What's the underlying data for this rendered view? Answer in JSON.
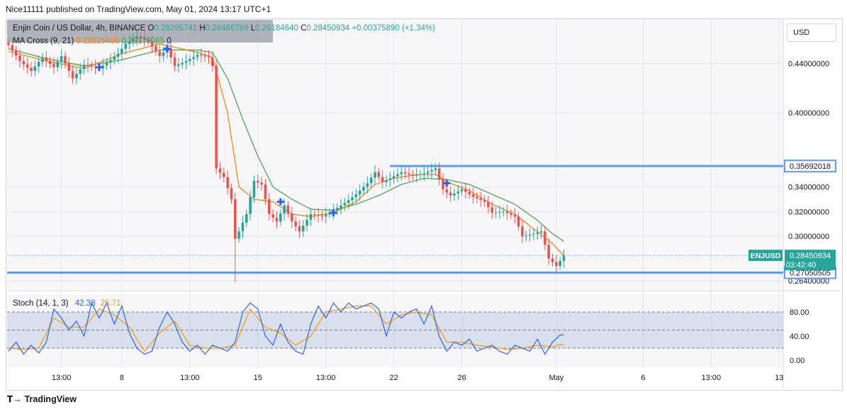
{
  "header": {
    "published_line": "Nice11111 published on TradingView.com, May 01, 2024 13:17 UTC+1"
  },
  "legend": {
    "symbol": "Enjin Coin / US Dollar, 4h, BINANCE",
    "o_label": "O",
    "o_value": "0.28295741",
    "h_label": "H",
    "h_value": "0.28486789",
    "l_label": "L",
    "l_value": "0.28184640",
    "c_label": "C",
    "c_value": "0.28450934",
    "change": "+0.00375890 (+1.34%)",
    "ma_label": "MA Cross (9, 21)",
    "ma_fast": "0.28525486",
    "ma_slow": "0.29170065",
    "ma_extra": "0"
  },
  "stoch_legend": {
    "label": "Stoch (14, 1, 3)",
    "k": "42.38",
    "d": "25.71"
  },
  "currency_button": "USD",
  "branding": "TradingView",
  "colors": {
    "up": "#26a69a",
    "down": "#ef5350",
    "ma_fast": "#f57c00",
    "ma_slow": "#43a047",
    "hline": "#5b9cf6",
    "cross": "#2962ff",
    "stoch_k": "#2962ff",
    "stoch_d": "#ff9800",
    "stoch_band": "#b2c4dd"
  },
  "chart_data": {
    "type": "candlestick",
    "symbol": "ENJUSD",
    "interval": "4h",
    "price_ticks": [
      "0.44000000",
      "0.40000000",
      "0.34000000",
      "0.32000000",
      "0.30000000",
      "0.26400000"
    ],
    "price_tick_values": [
      0.44,
      0.4,
      0.34,
      0.32,
      0.3,
      0.264
    ],
    "y_range": [
      0.257,
      0.476
    ],
    "x_tick_labels": [
      "13:00",
      "8",
      "13:00",
      "15",
      "13:00",
      "22",
      "26",
      "May",
      "6",
      "13:00",
      "13"
    ],
    "x_tick_index": [
      14,
      30,
      48,
      66,
      84,
      102,
      120,
      145,
      168,
      186,
      204
    ],
    "resistance": {
      "value": 0.35692018,
      "label": "0.35692018",
      "start_index": 101
    },
    "support": {
      "value": 0.27050505,
      "label": "0.27050505"
    },
    "last_price": {
      "symbol_label": "ENJUSD",
      "value": 0.28450934,
      "label": "0.28450934",
      "countdown": "03:42:40"
    },
    "crosses": [
      {
        "i": 24,
        "price": 0.437
      },
      {
        "i": 42,
        "price": 0.452
      },
      {
        "i": 72,
        "price": 0.328
      },
      {
        "i": 86,
        "price": 0.319
      },
      {
        "i": 116,
        "price": 0.343
      }
    ],
    "anchors": [
      [
        0,
        0.455
      ],
      [
        3,
        0.442
      ],
      [
        6,
        0.434
      ],
      [
        9,
        0.445
      ],
      [
        12,
        0.437
      ],
      [
        14,
        0.446
      ],
      [
        17,
        0.428
      ],
      [
        20,
        0.439
      ],
      [
        24,
        0.436
      ],
      [
        27,
        0.443
      ],
      [
        29,
        0.448
      ],
      [
        31,
        0.456
      ],
      [
        34,
        0.462
      ],
      [
        37,
        0.458
      ],
      [
        40,
        0.446
      ],
      [
        42,
        0.452
      ],
      [
        44,
        0.438
      ],
      [
        47,
        0.442
      ],
      [
        50,
        0.447
      ],
      [
        53,
        0.445
      ],
      [
        54,
        0.438
      ],
      [
        55,
        0.355
      ],
      [
        57,
        0.348
      ],
      [
        59,
        0.33
      ],
      [
        60,
        0.298
      ],
      [
        61,
        0.304
      ],
      [
        63,
        0.318
      ],
      [
        65,
        0.345
      ],
      [
        67,
        0.342
      ],
      [
        69,
        0.318
      ],
      [
        71,
        0.312
      ],
      [
        73,
        0.325
      ],
      [
        75,
        0.312
      ],
      [
        77,
        0.304
      ],
      [
        80,
        0.318
      ],
      [
        83,
        0.316
      ],
      [
        86,
        0.321
      ],
      [
        89,
        0.327
      ],
      [
        92,
        0.334
      ],
      [
        95,
        0.343
      ],
      [
        97,
        0.352
      ],
      [
        99,
        0.344
      ],
      [
        101,
        0.347
      ],
      [
        104,
        0.352
      ],
      [
        107,
        0.349
      ],
      [
        110,
        0.351
      ],
      [
        113,
        0.355
      ],
      [
        115,
        0.338
      ],
      [
        117,
        0.333
      ],
      [
        120,
        0.338
      ],
      [
        123,
        0.332
      ],
      [
        126,
        0.328
      ],
      [
        128,
        0.319
      ],
      [
        131,
        0.32
      ],
      [
        134,
        0.316
      ],
      [
        136,
        0.3
      ],
      [
        139,
        0.302
      ],
      [
        141,
        0.304
      ],
      [
        143,
        0.282
      ],
      [
        145,
        0.276
      ],
      [
        147,
        0.284
      ]
    ],
    "candle_count": 148,
    "spike_low": {
      "i": 60,
      "price": 0.263
    },
    "stoch": {
      "levels": [
        80,
        50,
        20
      ],
      "level_labels": [
        "80.00",
        "40.00",
        "0.00"
      ],
      "level_label_values": [
        80,
        40,
        0
      ],
      "anchors_k": [
        [
          0,
          15
        ],
        [
          2,
          30
        ],
        [
          4,
          10
        ],
        [
          6,
          25
        ],
        [
          8,
          12
        ],
        [
          10,
          30
        ],
        [
          12,
          85
        ],
        [
          14,
          70
        ],
        [
          16,
          50
        ],
        [
          18,
          65
        ],
        [
          20,
          40
        ],
        [
          22,
          95
        ],
        [
          24,
          70
        ],
        [
          26,
          95
        ],
        [
          28,
          60
        ],
        [
          30,
          90
        ],
        [
          32,
          45
        ],
        [
          34,
          20
        ],
        [
          36,
          10
        ],
        [
          38,
          15
        ],
        [
          40,
          55
        ],
        [
          42,
          80
        ],
        [
          44,
          60
        ],
        [
          46,
          30
        ],
        [
          48,
          15
        ],
        [
          50,
          25
        ],
        [
          52,
          10
        ],
        [
          54,
          25
        ],
        [
          56,
          20
        ],
        [
          58,
          15
        ],
        [
          60,
          30
        ],
        [
          62,
          80
        ],
        [
          64,
          95
        ],
        [
          66,
          85
        ],
        [
          68,
          40
        ],
        [
          70,
          25
        ],
        [
          72,
          60
        ],
        [
          74,
          30
        ],
        [
          76,
          15
        ],
        [
          78,
          10
        ],
        [
          80,
          60
        ],
        [
          82,
          90
        ],
        [
          84,
          70
        ],
        [
          86,
          95
        ],
        [
          88,
          80
        ],
        [
          90,
          95
        ],
        [
          92,
          85
        ],
        [
          94,
          90
        ],
        [
          96,
          95
        ],
        [
          98,
          85
        ],
        [
          100,
          40
        ],
        [
          102,
          80
        ],
        [
          104,
          70
        ],
        [
          106,
          80
        ],
        [
          108,
          85
        ],
        [
          110,
          60
        ],
        [
          112,
          90
        ],
        [
          114,
          40
        ],
        [
          116,
          15
        ],
        [
          118,
          30
        ],
        [
          120,
          25
        ],
        [
          122,
          35
        ],
        [
          124,
          15
        ],
        [
          126,
          20
        ],
        [
          128,
          25
        ],
        [
          130,
          15
        ],
        [
          132,
          10
        ],
        [
          134,
          25
        ],
        [
          136,
          20
        ],
        [
          138,
          15
        ],
        [
          140,
          35
        ],
        [
          142,
          10
        ],
        [
          144,
          30
        ],
        [
          146,
          42
        ]
      ],
      "anchors_d": [
        [
          0,
          20
        ],
        [
          4,
          18
        ],
        [
          8,
          20
        ],
        [
          12,
          70
        ],
        [
          16,
          55
        ],
        [
          20,
          55
        ],
        [
          24,
          85
        ],
        [
          28,
          75
        ],
        [
          32,
          55
        ],
        [
          36,
          15
        ],
        [
          40,
          45
        ],
        [
          44,
          65
        ],
        [
          48,
          25
        ],
        [
          52,
          20
        ],
        [
          56,
          20
        ],
        [
          60,
          25
        ],
        [
          64,
          85
        ],
        [
          68,
          55
        ],
        [
          72,
          45
        ],
        [
          76,
          25
        ],
        [
          80,
          40
        ],
        [
          84,
          80
        ],
        [
          88,
          85
        ],
        [
          92,
          90
        ],
        [
          96,
          90
        ],
        [
          100,
          60
        ],
        [
          104,
          75
        ],
        [
          108,
          80
        ],
        [
          112,
          75
        ],
        [
          116,
          30
        ],
        [
          120,
          30
        ],
        [
          124,
          25
        ],
        [
          128,
          22
        ],
        [
          132,
          18
        ],
        [
          136,
          20
        ],
        [
          140,
          25
        ],
        [
          144,
          22
        ],
        [
          146,
          26
        ]
      ]
    },
    "ma_fast_anchors": [
      [
        0,
        0.45
      ],
      [
        10,
        0.442
      ],
      [
        20,
        0.436
      ],
      [
        30,
        0.448
      ],
      [
        40,
        0.456
      ],
      [
        50,
        0.449
      ],
      [
        54,
        0.445
      ],
      [
        58,
        0.4
      ],
      [
        61,
        0.34
      ],
      [
        65,
        0.33
      ],
      [
        70,
        0.328
      ],
      [
        75,
        0.318
      ],
      [
        80,
        0.316
      ],
      [
        86,
        0.319
      ],
      [
        92,
        0.328
      ],
      [
        97,
        0.342
      ],
      [
        102,
        0.347
      ],
      [
        108,
        0.35
      ],
      [
        113,
        0.35
      ],
      [
        117,
        0.343
      ],
      [
        122,
        0.337
      ],
      [
        128,
        0.326
      ],
      [
        134,
        0.318
      ],
      [
        139,
        0.306
      ],
      [
        144,
        0.294
      ],
      [
        147,
        0.284
      ]
    ],
    "ma_slow_anchors": [
      [
        0,
        0.452
      ],
      [
        10,
        0.444
      ],
      [
        20,
        0.438
      ],
      [
        30,
        0.443
      ],
      [
        40,
        0.451
      ],
      [
        50,
        0.451
      ],
      [
        54,
        0.449
      ],
      [
        58,
        0.428
      ],
      [
        62,
        0.395
      ],
      [
        66,
        0.365
      ],
      [
        70,
        0.34
      ],
      [
        75,
        0.33
      ],
      [
        80,
        0.322
      ],
      [
        86,
        0.321
      ],
      [
        92,
        0.326
      ],
      [
        98,
        0.333
      ],
      [
        104,
        0.342
      ],
      [
        110,
        0.347
      ],
      [
        116,
        0.346
      ],
      [
        122,
        0.342
      ],
      [
        128,
        0.334
      ],
      [
        134,
        0.326
      ],
      [
        140,
        0.313
      ],
      [
        144,
        0.302
      ],
      [
        147,
        0.296
      ]
    ]
  }
}
